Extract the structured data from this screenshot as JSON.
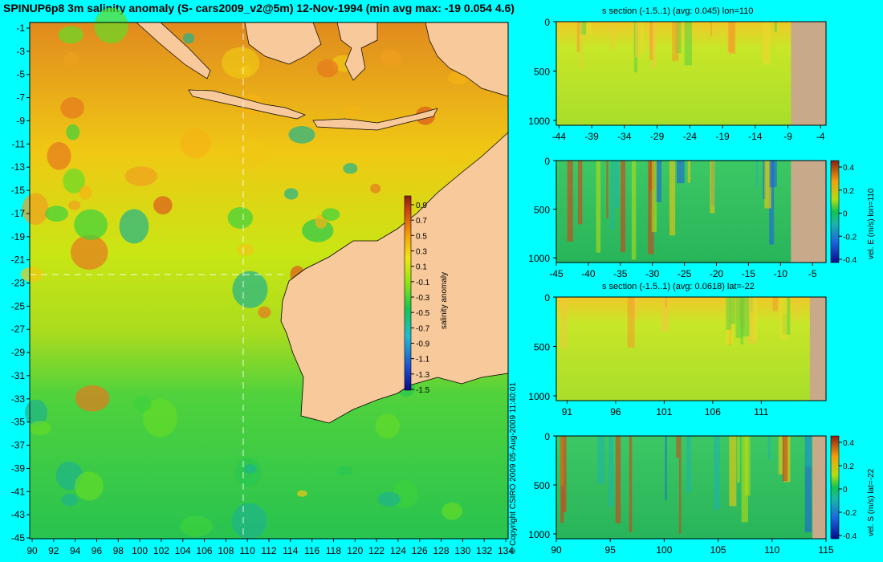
{
  "title": "SPINUP6p8 3m salinity anomaly (S- cars2009_v2@5m) 12-Nov-1994 (min avg max: -19 0.054 4.6)",
  "copyright": "© Copyright CSIRO 2009   05-Aug-2009 11:40:01",
  "colors": {
    "background": "#00ffff",
    "land": "#f8c99a",
    "section_land": "#c8aa8a"
  },
  "chart_data": [
    {
      "type": "heatmap",
      "name": "map",
      "xlim": [
        90,
        135
      ],
      "ylim": [
        -45,
        0
      ],
      "x_ticks": [
        "90",
        "92",
        "94",
        "96",
        "98",
        "100",
        "102",
        "104",
        "106",
        "108",
        "110",
        "112",
        "114",
        "116",
        "118",
        "120",
        "122",
        "124",
        "126",
        "128",
        "130",
        "132",
        "134"
      ],
      "y_ticks": [
        "-1",
        "-3",
        "-5",
        "-7",
        "-9",
        "-11",
        "-13",
        "-15",
        "-17",
        "-19",
        "-21",
        "-23",
        "-25",
        "-27",
        "-29",
        "-31",
        "-33",
        "-35",
        "-37",
        "-39",
        "-41",
        "-43",
        "-45"
      ],
      "crosshair": {
        "lon": 110,
        "lat": -22
      },
      "colorbar": {
        "label": "salinity anomaly",
        "ticks": [
          "0.9",
          "0.7",
          "0.5",
          "0.3",
          "0.1",
          "-0.1",
          "-0.3",
          "-0.5",
          "-0.7",
          "-0.9",
          "-1.1",
          "-1.3",
          "-1.5"
        ]
      }
    },
    {
      "type": "heatmap",
      "name": "section1",
      "title": "s section (-1.5..1) (avg: 0.045) lon=110",
      "x_ticks": [
        "-44",
        "-39",
        "-34",
        "-29",
        "-24",
        "-19",
        "-14",
        "-9",
        "-4"
      ],
      "y_ticks": [
        "0",
        "500",
        "1000"
      ]
    },
    {
      "type": "heatmap",
      "name": "section2",
      "x_ticks": [
        "-45",
        "-40",
        "-35",
        "-30",
        "-25",
        "-20",
        "-15",
        "-10",
        "-5"
      ],
      "y_ticks": [
        "0",
        "500",
        "1000"
      ],
      "colorbar": {
        "label": "vel. E (m/s) lon=110",
        "ticks": [
          "0.4",
          "0.2",
          "0",
          "-0.2",
          "-0.4"
        ]
      }
    },
    {
      "type": "heatmap",
      "name": "section3",
      "title": "s section (-1.5..1) (avg: 0.0618) lat=-22",
      "x_ticks": [
        "91",
        "96",
        "101",
        "106",
        "111"
      ],
      "y_ticks": [
        "0",
        "500",
        "1000"
      ]
    },
    {
      "type": "heatmap",
      "name": "section4",
      "x_ticks": [
        "90",
        "95",
        "100",
        "105",
        "110",
        "115"
      ],
      "y_ticks": [
        "0",
        "500",
        "1000"
      ],
      "colorbar": {
        "label": "vel. S (m/s) lat=-22",
        "ticks": [
          "0.4",
          "0.2",
          "0",
          "-0.2",
          "-0.4"
        ]
      }
    }
  ]
}
